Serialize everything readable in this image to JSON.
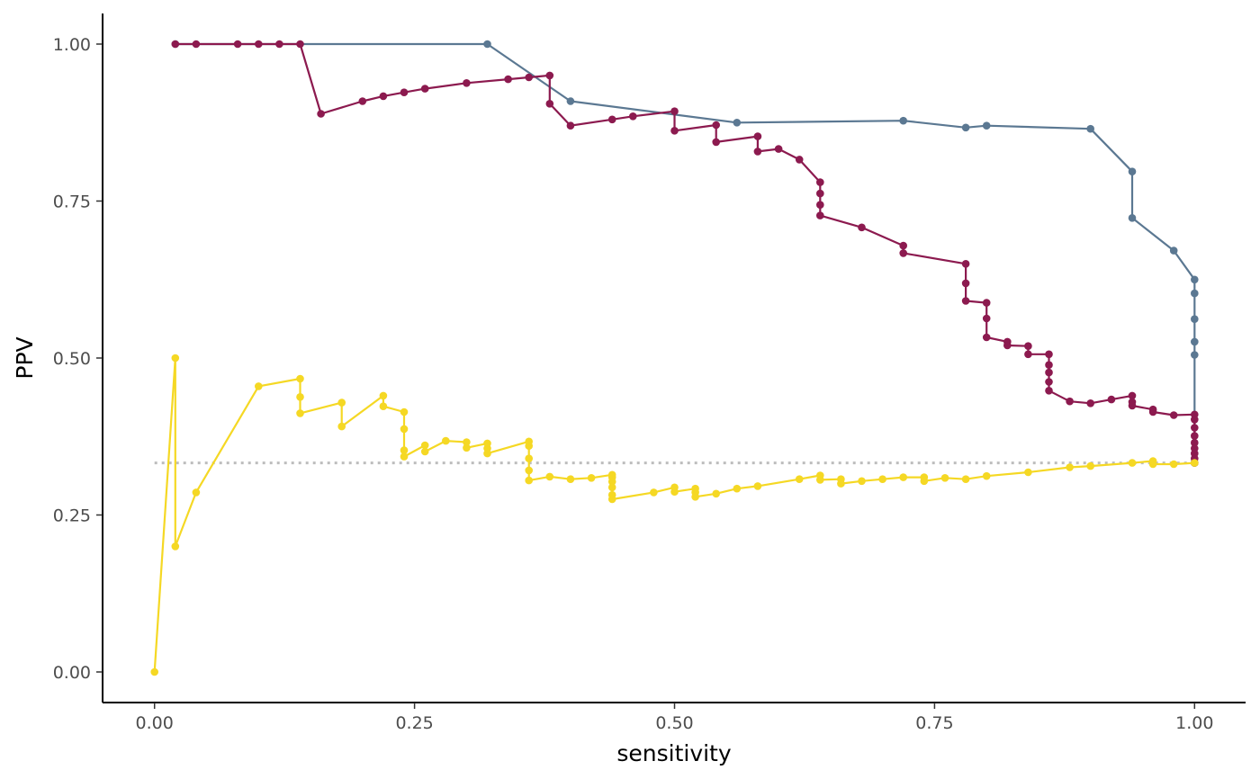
{
  "chart_data": {
    "type": "line",
    "title": "",
    "xlabel": "sensitivity",
    "ylabel": "PPV",
    "xlim": [
      -0.05,
      1.05
    ],
    "ylim": [
      -0.05,
      1.05
    ],
    "x_ticks": [
      0,
      0.25,
      0.5,
      0.75,
      1
    ],
    "x_tick_labels": [
      "0.00",
      "0.25",
      "0.50",
      "0.75",
      "1.00"
    ],
    "y_ticks": [
      0,
      0.25,
      0.5,
      0.75,
      1
    ],
    "y_tick_labels": [
      "0.00",
      "0.25",
      "0.50",
      "0.75",
      "1.00"
    ],
    "grid": false,
    "legend": "none",
    "reference_line": {
      "y": 0.333,
      "x_range": [
        0,
        1
      ],
      "style": "dotted",
      "color": "#bdbdbd"
    },
    "series": [
      {
        "color": "#5b7892",
        "points": [
          [
            0.02,
            1.0
          ],
          [
            0.32,
            1.0
          ],
          [
            0.4,
            0.909
          ],
          [
            0.56,
            0.875
          ],
          [
            0.72,
            0.878
          ],
          [
            0.78,
            0.867
          ],
          [
            0.8,
            0.87
          ],
          [
            0.9,
            0.865
          ],
          [
            0.94,
            0.797
          ],
          [
            0.94,
            0.723
          ],
          [
            0.98,
            0.671
          ],
          [
            1.0,
            0.625
          ],
          [
            1.0,
            0.603
          ],
          [
            1.0,
            0.562
          ],
          [
            1.0,
            0.526
          ],
          [
            1.0,
            0.505
          ],
          [
            1.0,
            0.333
          ]
        ]
      },
      {
        "color": "#8c1a4f",
        "points": [
          [
            0.02,
            1.0
          ],
          [
            0.04,
            1.0
          ],
          [
            0.08,
            1.0
          ],
          [
            0.1,
            1.0
          ],
          [
            0.12,
            1.0
          ],
          [
            0.14,
            1.0
          ],
          [
            0.16,
            0.889
          ],
          [
            0.2,
            0.909
          ],
          [
            0.22,
            0.917
          ],
          [
            0.24,
            0.923
          ],
          [
            0.26,
            0.929
          ],
          [
            0.3,
            0.938
          ],
          [
            0.34,
            0.944
          ],
          [
            0.36,
            0.947
          ],
          [
            0.38,
            0.95
          ],
          [
            0.38,
            0.905
          ],
          [
            0.4,
            0.87
          ],
          [
            0.44,
            0.88
          ],
          [
            0.46,
            0.885
          ],
          [
            0.5,
            0.893
          ],
          [
            0.5,
            0.862
          ],
          [
            0.54,
            0.871
          ],
          [
            0.54,
            0.844
          ],
          [
            0.58,
            0.853
          ],
          [
            0.58,
            0.829
          ],
          [
            0.6,
            0.833
          ],
          [
            0.62,
            0.816
          ],
          [
            0.64,
            0.78
          ],
          [
            0.64,
            0.762
          ],
          [
            0.64,
            0.744
          ],
          [
            0.64,
            0.727
          ],
          [
            0.68,
            0.708
          ],
          [
            0.72,
            0.679
          ],
          [
            0.72,
            0.667
          ],
          [
            0.78,
            0.65
          ],
          [
            0.78,
            0.619
          ],
          [
            0.78,
            0.591
          ],
          [
            0.8,
            0.588
          ],
          [
            0.8,
            0.563
          ],
          [
            0.8,
            0.533
          ],
          [
            0.82,
            0.526
          ],
          [
            0.82,
            0.52
          ],
          [
            0.84,
            0.519
          ],
          [
            0.84,
            0.506
          ],
          [
            0.86,
            0.506
          ],
          [
            0.86,
            0.489
          ],
          [
            0.86,
            0.477
          ],
          [
            0.86,
            0.462
          ],
          [
            0.86,
            0.448
          ],
          [
            0.88,
            0.431
          ],
          [
            0.9,
            0.428
          ],
          [
            0.92,
            0.434
          ],
          [
            0.94,
            0.44
          ],
          [
            0.94,
            0.43
          ],
          [
            0.94,
            0.424
          ],
          [
            0.96,
            0.418
          ],
          [
            0.96,
            0.414
          ],
          [
            0.98,
            0.409
          ],
          [
            1.0,
            0.41
          ],
          [
            1.0,
            0.402
          ],
          [
            1.0,
            0.389
          ],
          [
            1.0,
            0.376
          ],
          [
            1.0,
            0.365
          ],
          [
            1.0,
            0.356
          ],
          [
            1.0,
            0.348
          ],
          [
            1.0,
            0.34
          ],
          [
            1.0,
            0.333
          ]
        ]
      },
      {
        "color": "#f5d824",
        "points": [
          [
            0.0,
            0.0
          ],
          [
            0.02,
            0.5
          ],
          [
            0.02,
            0.2
          ],
          [
            0.04,
            0.286
          ],
          [
            0.1,
            0.455
          ],
          [
            0.14,
            0.467
          ],
          [
            0.14,
            0.438
          ],
          [
            0.14,
            0.412
          ],
          [
            0.18,
            0.429
          ],
          [
            0.18,
            0.391
          ],
          [
            0.22,
            0.44
          ],
          [
            0.22,
            0.423
          ],
          [
            0.24,
            0.414
          ],
          [
            0.24,
            0.387
          ],
          [
            0.24,
            0.353
          ],
          [
            0.24,
            0.343
          ],
          [
            0.26,
            0.361
          ],
          [
            0.26,
            0.351
          ],
          [
            0.28,
            0.368
          ],
          [
            0.3,
            0.366
          ],
          [
            0.3,
            0.357
          ],
          [
            0.32,
            0.364
          ],
          [
            0.32,
            0.356
          ],
          [
            0.32,
            0.348
          ],
          [
            0.36,
            0.367
          ],
          [
            0.36,
            0.36
          ],
          [
            0.36,
            0.34
          ],
          [
            0.36,
            0.321
          ],
          [
            0.36,
            0.305
          ],
          [
            0.38,
            0.311
          ],
          [
            0.4,
            0.307
          ],
          [
            0.42,
            0.309
          ],
          [
            0.44,
            0.314
          ],
          [
            0.44,
            0.31
          ],
          [
            0.44,
            0.303
          ],
          [
            0.44,
            0.294
          ],
          [
            0.44,
            0.282
          ],
          [
            0.44,
            0.275
          ],
          [
            0.48,
            0.286
          ],
          [
            0.5,
            0.294
          ],
          [
            0.5,
            0.287
          ],
          [
            0.52,
            0.292
          ],
          [
            0.52,
            0.286
          ],
          [
            0.52,
            0.279
          ],
          [
            0.54,
            0.284
          ],
          [
            0.56,
            0.292
          ],
          [
            0.58,
            0.296
          ],
          [
            0.62,
            0.307
          ],
          [
            0.64,
            0.313
          ],
          [
            0.64,
            0.306
          ],
          [
            0.66,
            0.307
          ],
          [
            0.66,
            0.3
          ],
          [
            0.68,
            0.304
          ],
          [
            0.7,
            0.307
          ],
          [
            0.72,
            0.31
          ],
          [
            0.74,
            0.31
          ],
          [
            0.74,
            0.304
          ],
          [
            0.76,
            0.309
          ],
          [
            0.78,
            0.307
          ],
          [
            0.8,
            0.312
          ],
          [
            0.84,
            0.318
          ],
          [
            0.88,
            0.326
          ],
          [
            0.9,
            0.328
          ],
          [
            0.94,
            0.333
          ],
          [
            0.96,
            0.336
          ],
          [
            0.96,
            0.331
          ],
          [
            0.98,
            0.331
          ],
          [
            1.0,
            0.333
          ]
        ]
      }
    ]
  }
}
